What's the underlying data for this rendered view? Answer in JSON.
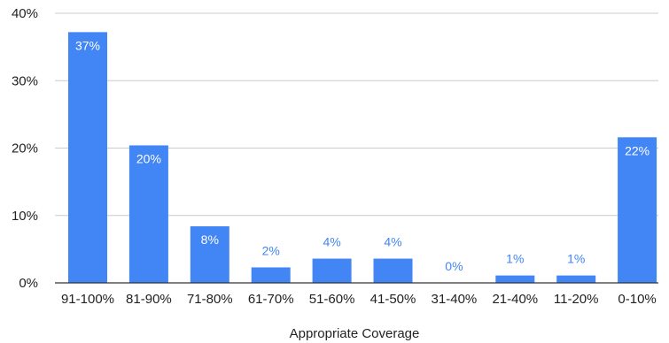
{
  "chart_data": {
    "type": "bar",
    "title": "",
    "xlabel": "Appropriate Coverage",
    "ylabel": "",
    "ylim": [
      0,
      40
    ],
    "yticks": [
      0,
      10,
      20,
      30,
      40
    ],
    "ytick_labels": [
      "0%",
      "10%",
      "20%",
      "30%",
      "40%"
    ],
    "grid": true,
    "legend": "none",
    "categories": [
      "91-100%",
      "81-90%",
      "71-80%",
      "61-70%",
      "51-60%",
      "41-50%",
      "31-40%",
      "21-40%",
      "11-20%",
      "0-10%"
    ],
    "values": [
      37.2,
      20.4,
      8.4,
      2.3,
      3.6,
      3.6,
      0,
      1.1,
      1.1,
      21.6
    ],
    "data_labels": [
      "37%",
      "20%",
      "8%",
      "2%",
      "4%",
      "4%",
      "0%",
      "1%",
      "1%",
      "22%"
    ],
    "colors": {
      "bar": "#4285f4",
      "label_inside": "#ffffff",
      "label_outside": "#4285f4",
      "grid": "#cccccc",
      "baseline": "#333333"
    }
  }
}
